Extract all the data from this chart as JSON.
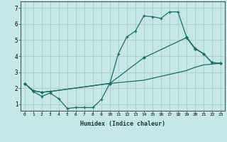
{
  "xlabel": "Humidex (Indice chaleur)",
  "bg_color": "#c5e8e5",
  "grid_color": "#b0d0cc",
  "line_color": "#1a6e60",
  "xlim": [
    -0.5,
    23.5
  ],
  "ylim": [
    0.6,
    7.4
  ],
  "xticks": [
    0,
    1,
    2,
    3,
    4,
    5,
    6,
    7,
    8,
    9,
    10,
    11,
    12,
    13,
    14,
    15,
    16,
    17,
    18,
    19,
    20,
    21,
    22,
    23
  ],
  "yticks": [
    1,
    2,
    3,
    4,
    5,
    6,
    7
  ],
  "line1_x": [
    0,
    1,
    2,
    3,
    4,
    5,
    6,
    7,
    8,
    9,
    10,
    11,
    12,
    13,
    14,
    15,
    16,
    17,
    18,
    19,
    20,
    21,
    22,
    23
  ],
  "line1_y": [
    2.3,
    1.8,
    1.5,
    1.7,
    1.35,
    0.75,
    0.8,
    0.8,
    0.8,
    1.3,
    2.3,
    4.15,
    5.2,
    5.55,
    6.5,
    6.45,
    6.35,
    6.75,
    6.75,
    5.2,
    4.5,
    4.15,
    3.6,
    3.55
  ],
  "line2_x": [
    0,
    1,
    2,
    3,
    10,
    14,
    19,
    20,
    21,
    22,
    23
  ],
  "line2_y": [
    2.3,
    1.85,
    1.75,
    1.8,
    2.3,
    3.9,
    5.15,
    4.45,
    4.15,
    3.6,
    3.55
  ],
  "line3_x": [
    0,
    1,
    2,
    3,
    10,
    14,
    19,
    20,
    21,
    22,
    23
  ],
  "line3_y": [
    2.3,
    1.85,
    1.75,
    1.8,
    2.3,
    2.5,
    3.1,
    3.3,
    3.45,
    3.5,
    3.55
  ]
}
